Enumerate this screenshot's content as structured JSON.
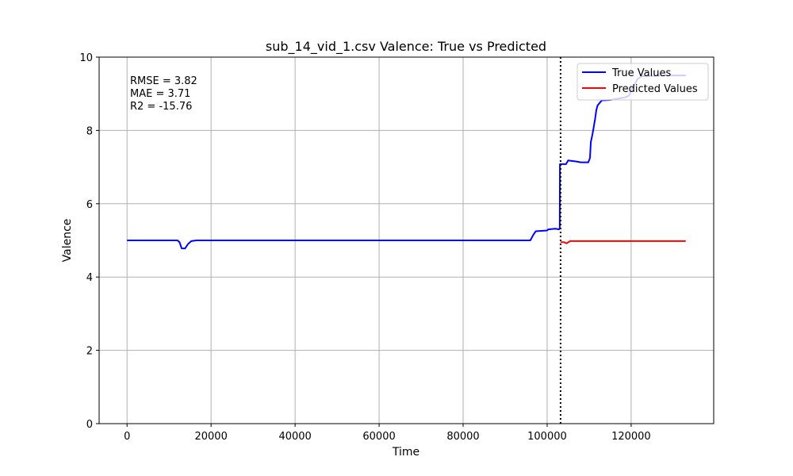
{
  "chart_data": {
    "type": "line",
    "title": "sub_14_vid_1.csv Valence: True vs Predicted",
    "xlabel": "Time",
    "ylabel": "Valence",
    "xlim": [
      -6650,
      139650
    ],
    "ylim": [
      0,
      10
    ],
    "xticks": [
      0,
      20000,
      40000,
      60000,
      80000,
      100000,
      120000
    ],
    "xtick_labels": [
      "0",
      "20000",
      "40000",
      "60000",
      "80000",
      "100000",
      "120000"
    ],
    "yticks": [
      0,
      2,
      4,
      6,
      8,
      10
    ],
    "ytick_labels": [
      "0",
      "2",
      "4",
      "6",
      "8",
      "10"
    ],
    "grid": true,
    "legend_position": "top-right",
    "split_marker_x": 103200,
    "metrics": [
      "RMSE = 3.82",
      "MAE = 3.71",
      "R2 = -15.76"
    ],
    "series": [
      {
        "name": "True Values",
        "color": "#0000ff",
        "points": [
          [
            0,
            5.0
          ],
          [
            12000,
            5.0
          ],
          [
            12500,
            4.95
          ],
          [
            13000,
            4.78
          ],
          [
            13800,
            4.78
          ],
          [
            14500,
            4.9
          ],
          [
            15300,
            4.98
          ],
          [
            16500,
            5.0
          ],
          [
            96000,
            5.0
          ],
          [
            96700,
            5.15
          ],
          [
            97300,
            5.25
          ],
          [
            100000,
            5.27
          ],
          [
            100300,
            5.3
          ],
          [
            102000,
            5.32
          ],
          [
            102800,
            5.3
          ],
          [
            103000,
            5.32
          ],
          [
            103050,
            7.08
          ],
          [
            104500,
            7.08
          ],
          [
            105000,
            7.18
          ],
          [
            107000,
            7.15
          ],
          [
            108000,
            7.13
          ],
          [
            109800,
            7.13
          ],
          [
            110200,
            7.25
          ],
          [
            110400,
            7.68
          ],
          [
            110800,
            7.9
          ],
          [
            111100,
            8.1
          ],
          [
            111400,
            8.3
          ],
          [
            111700,
            8.55
          ],
          [
            112000,
            8.68
          ],
          [
            112500,
            8.75
          ],
          [
            113000,
            8.82
          ],
          [
            115000,
            8.83
          ],
          [
            116500,
            8.86
          ],
          [
            118500,
            8.9
          ],
          [
            119500,
            8.95
          ],
          [
            120000,
            9.1
          ],
          [
            120800,
            9.25
          ],
          [
            121500,
            9.4
          ],
          [
            122500,
            9.48
          ],
          [
            128000,
            9.5
          ],
          [
            133000,
            9.5
          ]
        ]
      },
      {
        "name": "Predicted Values",
        "color": "#ff0000",
        "points": [
          [
            103200,
            4.95
          ],
          [
            104000,
            4.95
          ],
          [
            104600,
            4.92
          ],
          [
            105500,
            4.98
          ],
          [
            120000,
            4.98
          ],
          [
            133000,
            4.98
          ]
        ]
      }
    ]
  }
}
